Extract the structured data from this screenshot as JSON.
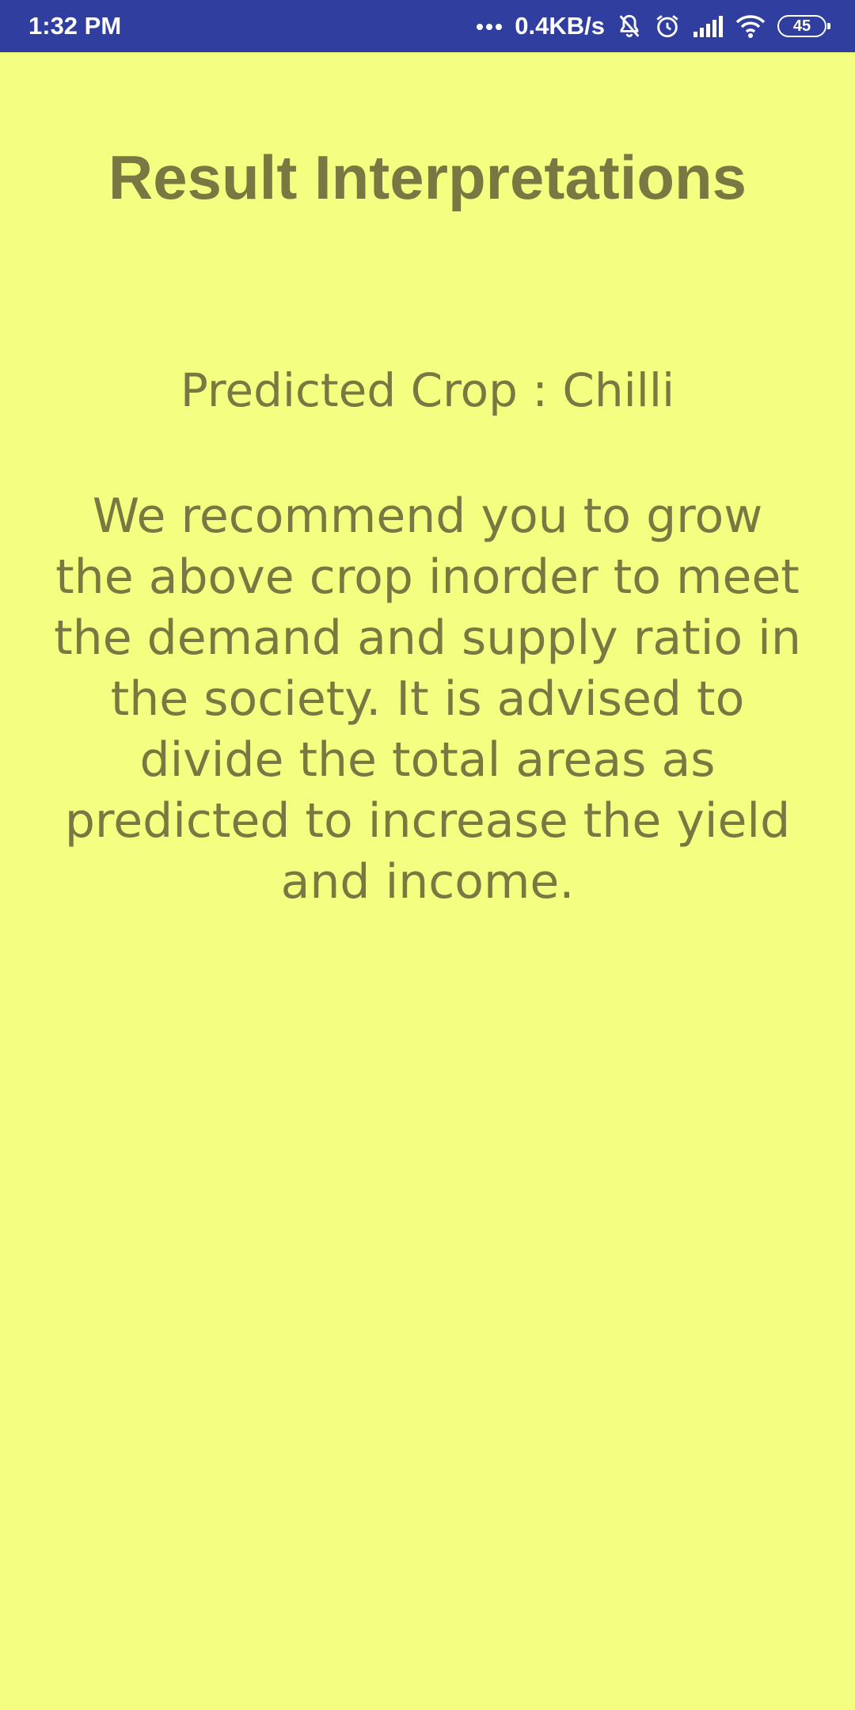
{
  "status_bar": {
    "time": "1:32 PM",
    "more_indicator": "...",
    "network_speed": "0.4KB/s",
    "battery_level": "45",
    "icons": [
      "more-dots-icon",
      "bell-muted-icon",
      "alarm-clock-icon",
      "signal-bars-icon",
      "wifi-icon",
      "battery-icon"
    ]
  },
  "screen": {
    "title": "Result Interpretations",
    "predicted_crop_text": "Predicted Crop : Chilli",
    "recommendation_text": "We recommend you to grow the above crop inorder to meet the demand and supply ratio in the society. It is advised to divide the  total areas as predicted to increase the yield and income."
  },
  "colors": {
    "status_bar_bg": "#303f9f",
    "page_bg": "#f4ff81",
    "text_color": "#777842"
  }
}
